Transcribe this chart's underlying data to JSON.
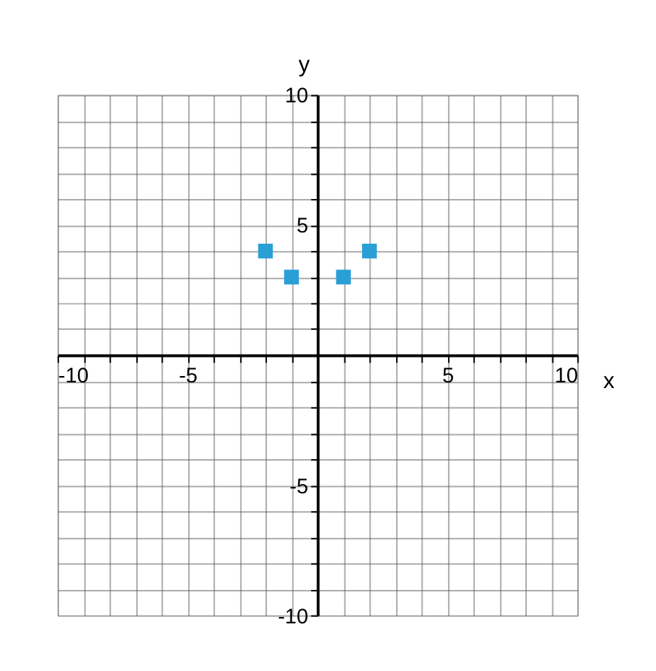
{
  "chart_data": {
    "type": "scatter",
    "xlabel": "x",
    "ylabel": "y",
    "x": [
      -2,
      -1,
      1,
      2
    ],
    "series": [
      {
        "color": "#2a9fd6",
        "values": [
          4,
          3,
          3,
          4
        ]
      }
    ],
    "marker": "square",
    "grid": true,
    "legend": false,
    "xlim": [
      -10,
      10
    ],
    "ylim": [
      -10,
      10
    ],
    "xticks": [
      -10,
      {
        "value": -9,
        "label": null
      },
      {
        "value": -8,
        "label": null
      },
      {
        "value": -7,
        "label": null
      },
      {
        "value": -6,
        "label": null
      },
      -5,
      {
        "value": -4,
        "label": null
      },
      {
        "value": -3,
        "label": null
      },
      {
        "value": -2,
        "label": null
      },
      {
        "value": -1,
        "label": null
      },
      {
        "value": 0,
        "label": null
      },
      {
        "value": 1,
        "label": null
      },
      {
        "value": 2,
        "label": null
      },
      {
        "value": 3,
        "label": null
      },
      {
        "value": 4,
        "label": null
      },
      5,
      {
        "value": 6,
        "label": null
      },
      {
        "value": 7,
        "label": null
      },
      {
        "value": 8,
        "label": null
      },
      {
        "value": 9,
        "label": null
      },
      10
    ],
    "yticks": [
      -10,
      {
        "value": -9,
        "label": null
      },
      {
        "value": -8,
        "label": null
      },
      {
        "value": -7,
        "label": null
      },
      {
        "value": -6,
        "label": null
      },
      -5,
      {
        "value": -4,
        "label": null
      },
      {
        "value": -3,
        "label": null
      },
      {
        "value": -2,
        "label": null
      },
      {
        "value": -1,
        "label": null
      },
      {
        "value": 0,
        "label": null
      },
      {
        "value": 1,
        "label": null
      },
      {
        "value": 2,
        "label": null
      },
      {
        "value": 3,
        "label": null
      },
      {
        "value": 4,
        "label": null
      },
      5,
      {
        "value": 6,
        "label": null
      },
      {
        "value": 7,
        "label": null
      },
      {
        "value": 8,
        "label": null
      },
      {
        "value": 9,
        "label": null
      },
      10
    ]
  }
}
